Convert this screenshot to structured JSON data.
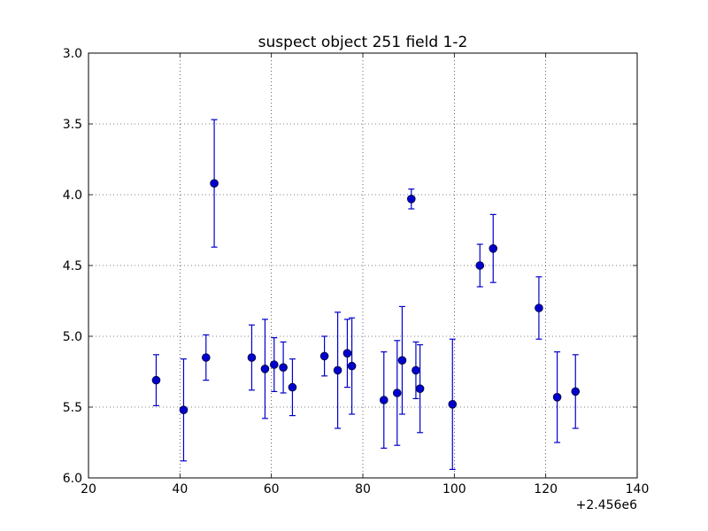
{
  "chart_data": {
    "type": "scatter",
    "title": "suspect object 251 field 1-2",
    "xlabel": "",
    "ylabel": "",
    "x_offset_label": "+2.456e6",
    "xlim": [
      20,
      140
    ],
    "ylim": [
      3.0,
      6.0
    ],
    "y_inverted": true,
    "grid": true,
    "xticks": [
      20,
      40,
      60,
      80,
      100,
      120,
      140
    ],
    "xtick_labels": [
      "20",
      "40",
      "60",
      "80",
      "100",
      "120",
      "140"
    ],
    "yticks": [
      3.0,
      3.5,
      4.0,
      4.5,
      5.0,
      5.5,
      6.0
    ],
    "ytick_labels": [
      "3.0",
      "3.5",
      "4.0",
      "4.5",
      "5.0",
      "5.5",
      "6.0"
    ],
    "colors": {
      "marker": "#0000cc",
      "errorbar": "#0000cc"
    },
    "series": [
      {
        "points": [
          {
            "x": 34.8,
            "y": 5.31,
            "err": 0.18
          },
          {
            "x": 40.8,
            "y": 5.52,
            "err": 0.36
          },
          {
            "x": 45.7,
            "y": 5.15,
            "err": 0.16
          },
          {
            "x": 47.5,
            "y": 3.92,
            "err": 0.45
          },
          {
            "x": 55.7,
            "y": 5.15,
            "err": 0.23
          },
          {
            "x": 58.6,
            "y": 5.23,
            "err": 0.35
          },
          {
            "x": 60.6,
            "y": 5.2,
            "err": 0.19
          },
          {
            "x": 62.6,
            "y": 5.22,
            "err": 0.18
          },
          {
            "x": 64.6,
            "y": 5.36,
            "err": 0.2
          },
          {
            "x": 71.6,
            "y": 5.14,
            "err": 0.14
          },
          {
            "x": 74.5,
            "y": 5.24,
            "err": 0.41
          },
          {
            "x": 76.6,
            "y": 5.12,
            "err": 0.24
          },
          {
            "x": 77.6,
            "y": 5.21,
            "err": 0.34
          },
          {
            "x": 84.6,
            "y": 5.45,
            "err": 0.34
          },
          {
            "x": 87.5,
            "y": 5.4,
            "err": 0.37
          },
          {
            "x": 88.6,
            "y": 5.17,
            "err": 0.38
          },
          {
            "x": 90.6,
            "y": 4.03,
            "err": 0.07
          },
          {
            "x": 91.6,
            "y": 5.24,
            "err": 0.2
          },
          {
            "x": 92.5,
            "y": 5.37,
            "err": 0.31
          },
          {
            "x": 99.6,
            "y": 5.48,
            "err": 0.46
          },
          {
            "x": 105.6,
            "y": 4.5,
            "err": 0.15
          },
          {
            "x": 108.5,
            "y": 4.38,
            "err": 0.24
          },
          {
            "x": 118.5,
            "y": 4.8,
            "err": 0.22
          },
          {
            "x": 122.5,
            "y": 5.43,
            "err": 0.32
          },
          {
            "x": 126.5,
            "y": 5.39,
            "err": 0.26
          }
        ]
      }
    ]
  }
}
